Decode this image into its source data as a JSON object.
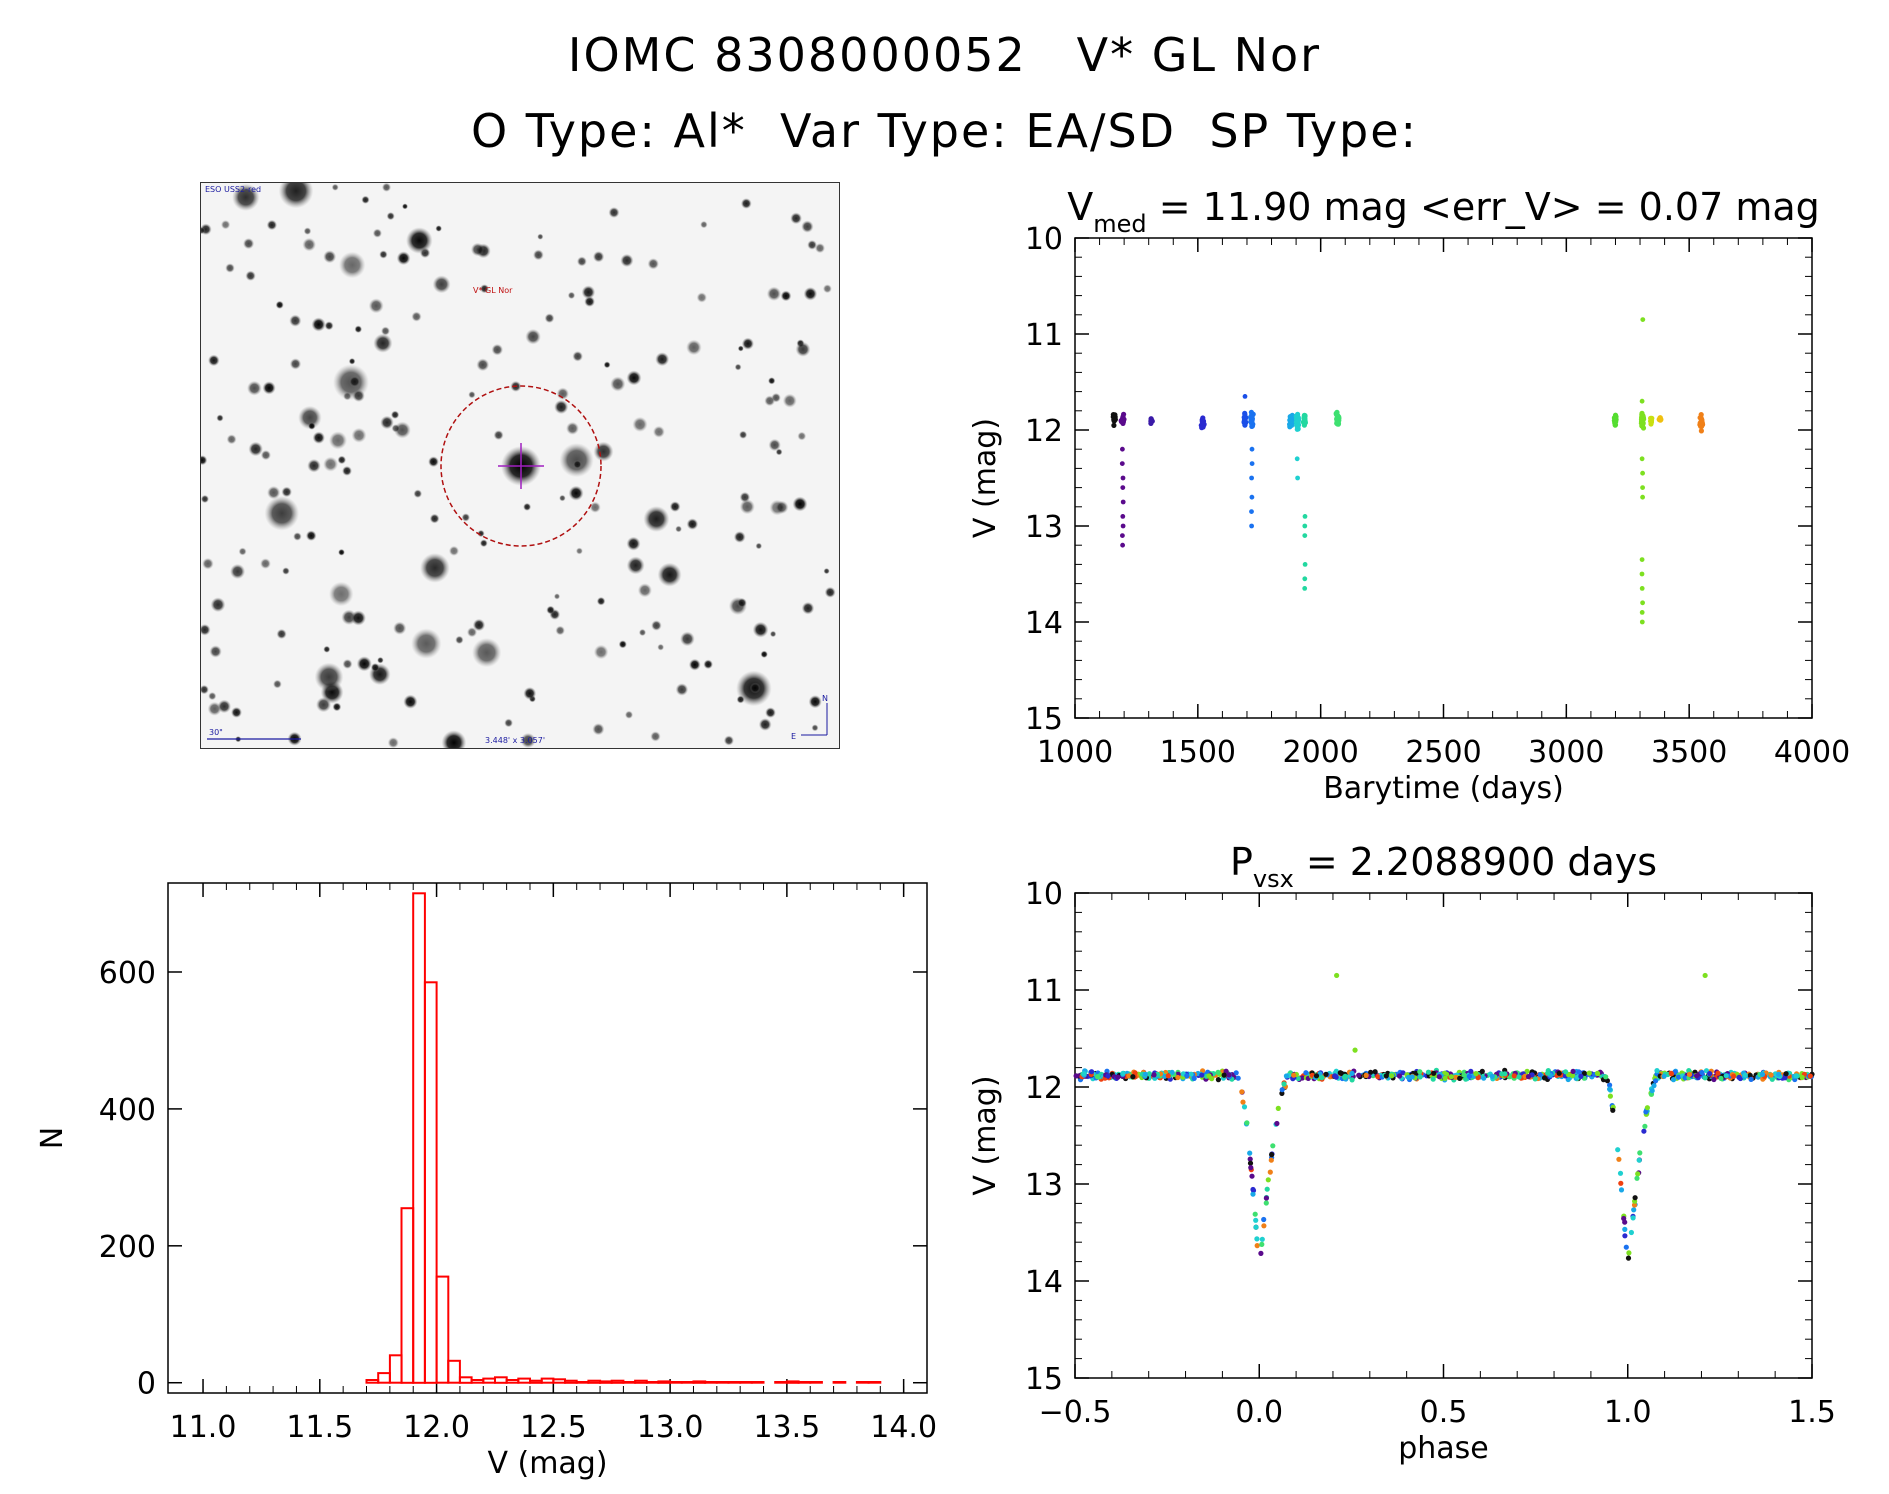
{
  "header": {
    "line1": "IOMC 8308000052   V* GL Nor",
    "line2": "O Type: Al*  Var Type: EA/SD  SP Type:"
  },
  "thumbnail": {
    "survey_label": "ESO USS2-red",
    "target_label": "V* GL Nor",
    "scale_label": "30\"",
    "size_label": "3.448' x 3.057'",
    "north_label": "N",
    "east_label": "E"
  },
  "chart_data": [
    {
      "id": "lightcurve",
      "type": "scatter",
      "title": "V_med = 11.90 mag <err_V> = 0.07 mag",
      "title_main": "V",
      "title_sub": "med",
      "title_rest": " = 11.90 mag <err_V> = 0.07 mag",
      "xlabel": "Barytime (days)",
      "ylabel": "V (mag)",
      "xlim": [
        1000,
        4000
      ],
      "ylim": [
        15,
        10
      ],
      "xticks": [
        "1000",
        "1500",
        "2000",
        "2500",
        "3000",
        "3500",
        "4000"
      ],
      "yticks": [
        "10",
        "11",
        "12",
        "13",
        "14",
        "15"
      ],
      "groups": [
        {
          "x": 1160,
          "base": 11.88,
          "spread": 0.08,
          "n": 14,
          "color": "#111111"
        },
        {
          "x": 1195,
          "base": 11.9,
          "spread": 0.09,
          "n": 16,
          "color": "#5a0a8c",
          "dips": [
            12.2,
            12.35,
            12.5,
            12.6,
            12.75,
            12.9,
            13.0,
            13.1,
            13.2
          ]
        },
        {
          "x": 1310,
          "base": 11.9,
          "spread": 0.06,
          "n": 8,
          "color": "#3a1aa8"
        },
        {
          "x": 1520,
          "base": 11.92,
          "spread": 0.1,
          "n": 12,
          "color": "#2a2ad0"
        },
        {
          "x": 1690,
          "base": 11.9,
          "spread": 0.1,
          "n": 18,
          "color": "#1a4ee8",
          "dips": [
            11.65
          ]
        },
        {
          "x": 1720,
          "base": 11.88,
          "spread": 0.1,
          "n": 22,
          "color": "#1a72f0",
          "dips": [
            12.2,
            12.35,
            12.5,
            12.7,
            12.85,
            13.0
          ]
        },
        {
          "x": 1880,
          "base": 11.9,
          "spread": 0.1,
          "n": 30,
          "color": "#19a8e8"
        },
        {
          "x": 1905,
          "base": 11.92,
          "spread": 0.1,
          "n": 30,
          "color": "#1fd0d0",
          "dips": [
            12.3,
            12.5
          ]
        },
        {
          "x": 1935,
          "base": 11.9,
          "spread": 0.08,
          "n": 20,
          "color": "#22d8a0",
          "dips": [
            12.9,
            13.0,
            13.1,
            13.4,
            13.55,
            13.65
          ]
        },
        {
          "x": 2070,
          "base": 11.88,
          "spread": 0.09,
          "n": 24,
          "color": "#3ee070"
        },
        {
          "x": 3200,
          "base": 11.9,
          "spread": 0.09,
          "n": 14,
          "color": "#55dd30"
        },
        {
          "x": 3310,
          "base": 11.9,
          "spread": 0.12,
          "n": 26,
          "color": "#7de020",
          "dips": [
            10.85,
            11.7,
            12.3,
            12.45,
            12.6,
            12.7,
            13.35,
            13.5,
            13.65,
            13.8,
            13.9,
            14.0
          ]
        },
        {
          "x": 3345,
          "base": 11.9,
          "spread": 0.06,
          "n": 10,
          "color": "#c8e010"
        },
        {
          "x": 3380,
          "base": 11.88,
          "spread": 0.05,
          "n": 10,
          "color": "#f0c010"
        },
        {
          "x": 3550,
          "base": 11.92,
          "spread": 0.12,
          "n": 24,
          "color": "#f08018"
        }
      ]
    },
    {
      "id": "histogram",
      "type": "bar",
      "title": "",
      "xlabel": "V (mag)",
      "ylabel": "N",
      "xlim": [
        10.85,
        14.1
      ],
      "ylim": [
        -15,
        730
      ],
      "xticks": [
        "11.0",
        "11.5",
        "12.0",
        "12.5",
        "13.0",
        "13.5",
        "14.0"
      ],
      "yticks": [
        "0",
        "200",
        "400",
        "600"
      ],
      "bin_start": 10.85,
      "bin_width": 0.05,
      "values": [
        0,
        0,
        0,
        0,
        0,
        0,
        0,
        0,
        0,
        0,
        0,
        0,
        0,
        0,
        0,
        0,
        0,
        4,
        14,
        40,
        255,
        715,
        585,
        155,
        32,
        8,
        4,
        6,
        8,
        4,
        6,
        3,
        6,
        5,
        3,
        1,
        3,
        2,
        3,
        1,
        3,
        1,
        2,
        1,
        1,
        2,
        1,
        1,
        1,
        1,
        1,
        0,
        1,
        2,
        1,
        1,
        0,
        1,
        0,
        1,
        1,
        0,
        0,
        0,
        0
      ],
      "color": "#ff0000"
    },
    {
      "id": "phased",
      "type": "scatter",
      "title": "P_vsx = 2.2088900 days",
      "title_main": "P",
      "title_sub": "vsx",
      "title_rest": " = 2.2088900 days",
      "xlabel": "phase",
      "ylabel": "V (mag)",
      "xlim": [
        -0.5,
        1.5
      ],
      "ylim": [
        15,
        10
      ],
      "xticks": [
        "−0.5",
        "0.0",
        "0.5",
        "1.0",
        "1.5"
      ],
      "yticks": [
        "10",
        "11",
        "12",
        "13",
        "14",
        "15"
      ],
      "period_days": 2.20889,
      "eclipse": {
        "center": 0.0,
        "depth_mag": 2.0,
        "baseline_mag": 11.88
      },
      "outliers": [
        {
          "x": 0.21,
          "y": 10.85
        },
        {
          "x": 1.21,
          "y": 10.85
        },
        {
          "x": 0.26,
          "y": 11.62
        }
      ],
      "palette": [
        "#111111",
        "#5a0a8c",
        "#2a2ad0",
        "#1a72f0",
        "#19a8e8",
        "#1fd0d0",
        "#22d8a0",
        "#3ee070",
        "#7de020",
        "#f08018",
        "#f04010"
      ]
    }
  ]
}
